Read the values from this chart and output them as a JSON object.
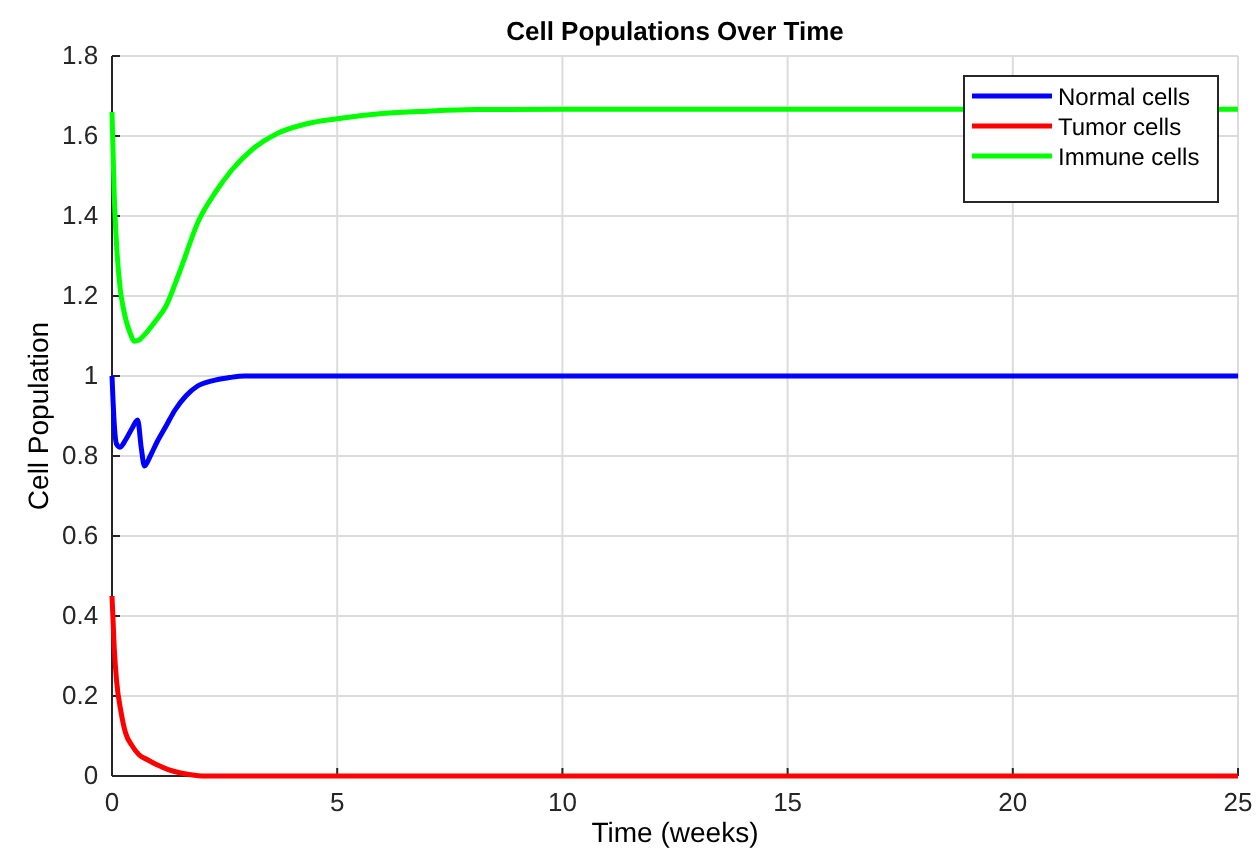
{
  "chart_data": {
    "type": "line",
    "title": "Cell Populations Over Time",
    "xlabel": "Time (weeks)",
    "ylabel": "Cell Population",
    "xlim": [
      0,
      25
    ],
    "xticks": [
      0,
      5,
      10,
      15,
      20,
      25
    ],
    "ylim": [
      0,
      1.8
    ],
    "yticks": [
      0,
      0.2,
      0.4,
      0.6,
      0.8,
      1,
      1.2,
      1.4,
      1.6,
      1.8
    ],
    "grid": true,
    "legend": "top right",
    "line_style": "solid",
    "marker": "none",
    "series": [
      {
        "name": "Normal cells",
        "color": "#0000ff",
        "x": [
          0,
          0.05,
          0.1,
          0.18,
          0.3,
          0.45,
          0.57,
          0.65,
          0.72,
          0.85,
          1.0,
          1.2,
          1.4,
          1.64,
          1.9,
          2.22,
          2.6,
          2.95,
          4,
          6,
          10,
          15,
          20,
          25
        ],
        "values": [
          1,
          0.88,
          0.83,
          0.822,
          0.84,
          0.87,
          0.89,
          0.82,
          0.775,
          0.8,
          0.835,
          0.875,
          0.915,
          0.95,
          0.975,
          0.988,
          0.996,
          1,
          1,
          1,
          1,
          1,
          1,
          1
        ]
      },
      {
        "name": "Tumor cells",
        "color": "#ff0000",
        "x": [
          0,
          0.05,
          0.1,
          0.2,
          0.3,
          0.45,
          0.6,
          0.8,
          1,
          1.25,
          1.5,
          1.75,
          2,
          3,
          5,
          10,
          15,
          20,
          25
        ],
        "values": [
          0.45,
          0.32,
          0.24,
          0.16,
          0.108,
          0.075,
          0.053,
          0.04,
          0.028,
          0.016,
          0.008,
          0.003,
          0,
          0,
          0,
          0,
          0,
          0,
          0
        ]
      },
      {
        "name": "Immune cells",
        "color": "#00ff00",
        "x": [
          0,
          0.05,
          0.1,
          0.18,
          0.25,
          0.4,
          0.5,
          0.6,
          0.76,
          0.95,
          1.2,
          1.5,
          1.93,
          2.3,
          2.66,
          3.1,
          3.68,
          4.3,
          5,
          6,
          7,
          8.07,
          10,
          15,
          25
        ],
        "values": [
          1.66,
          1.45,
          1.33,
          1.22,
          1.17,
          1.108,
          1.087,
          1.09,
          1.108,
          1.135,
          1.175,
          1.26,
          1.39,
          1.46,
          1.515,
          1.565,
          1.607,
          1.63,
          1.643,
          1.656,
          1.662,
          1.666,
          1.667,
          1.667,
          1.667
        ]
      }
    ]
  }
}
